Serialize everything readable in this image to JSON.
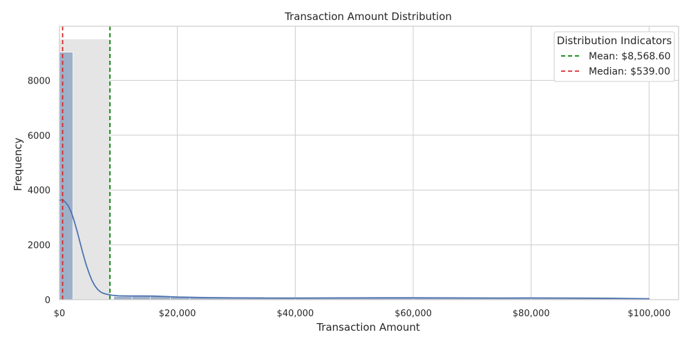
{
  "chart_data": {
    "type": "histogram",
    "title": "Transaction Amount Distribution",
    "xlabel": "Transaction Amount",
    "ylabel": "Frequency",
    "xlim": [
      0,
      105000
    ],
    "ylim": [
      0,
      9975
    ],
    "x_ticks": [
      0,
      20000,
      40000,
      60000,
      80000,
      100000
    ],
    "x_tick_labels": [
      "$0",
      "$20,000",
      "$40,000",
      "$60,000",
      "$80,000",
      "$100,000"
    ],
    "y_ticks": [
      0,
      2000,
      4000,
      6000,
      8000
    ],
    "y_tick_labels": [
      "0",
      "2000",
      "4000",
      "6000",
      "8000"
    ],
    "grid": true,
    "bins": [
      {
        "x0": 0,
        "x1": 2300,
        "count": 9030
      },
      {
        "x0": 2300,
        "x1": 4600,
        "count": 0
      },
      {
        "x0": 4600,
        "x1": 6900,
        "count": 0
      },
      {
        "x0": 6900,
        "x1": 9200,
        "count": 0
      },
      {
        "x0": 9200,
        "x1": 12300,
        "count": 120
      },
      {
        "x0": 12300,
        "x1": 15400,
        "count": 130
      },
      {
        "x0": 15400,
        "x1": 18800,
        "count": 120
      },
      {
        "x0": 18800,
        "x1": 22100,
        "count": 95
      },
      {
        "x0": 22100,
        "x1": 40000,
        "count": 75
      },
      {
        "x0": 40000,
        "x1": 60000,
        "count": 70
      },
      {
        "x0": 60000,
        "x1": 80000,
        "count": 70
      },
      {
        "x0": 80000,
        "x1": 100000,
        "count": 55
      }
    ],
    "kde": {
      "x": [
        0,
        500,
        1000,
        1500,
        2000,
        2500,
        3000,
        3500,
        4000,
        4500,
        5000,
        5500,
        6000,
        6500,
        7000,
        7500,
        8000,
        8500,
        9000,
        10000,
        12000,
        14000,
        16000,
        18000,
        20000,
        25000,
        30000,
        35000,
        40000,
        45000,
        50000,
        55000,
        60000,
        65000,
        70000,
        75000,
        80000,
        85000,
        90000,
        95000,
        100000
      ],
      "y": [
        3620,
        3650,
        3560,
        3420,
        3200,
        2880,
        2500,
        2080,
        1680,
        1300,
        980,
        710,
        510,
        370,
        280,
        230,
        200,
        180,
        160,
        140,
        135,
        135,
        130,
        115,
        95,
        75,
        65,
        60,
        58,
        62,
        66,
        68,
        68,
        66,
        62,
        60,
        62,
        60,
        55,
        48,
        35
      ]
    },
    "highlight_region": {
      "x0": 0,
      "x1": 8568.6,
      "y": 9500
    },
    "vlines": [
      {
        "label": "Mean: $8,568.60",
        "value": 8568.6,
        "color": "#008000",
        "style": "dashed"
      },
      {
        "label": "Median: $539.00",
        "value": 539.0,
        "color": "#d62728",
        "style": "dashed"
      }
    ],
    "legend": {
      "title": "Distribution Indicators",
      "placement": "top-right"
    },
    "colors": {
      "bar": "#9fb0c9",
      "kde": "#4c72b0",
      "region": "#e5e5e5",
      "grid": "#cccccc",
      "frame": "#cccccc"
    }
  }
}
